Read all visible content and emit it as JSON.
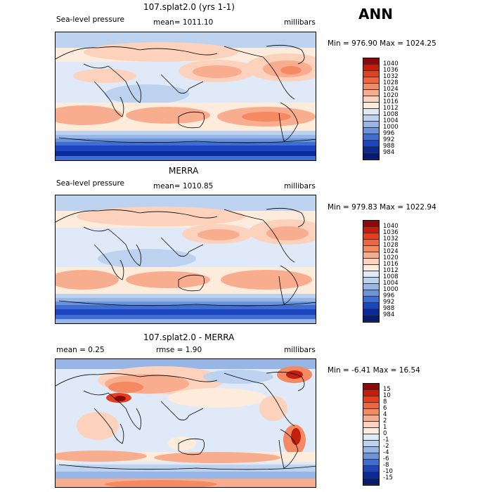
{
  "season": "ANN",
  "panels": [
    {
      "title": "107.splat2.0 (yrs 1-1)",
      "left_label": "Sea-level pressure",
      "center_label": "mean= 1011.10",
      "right_label": "millibars",
      "minmax": "Min = 976.90 Max = 1024.25",
      "colorbar": [
        "1040",
        "1036",
        "1032",
        "1028",
        "1024",
        "1020",
        "1016",
        "1012",
        "1008",
        "1004",
        "1000",
        "996",
        "992",
        "988",
        "984"
      ],
      "colors": [
        "#8e0a0a",
        "#c41e0c",
        "#e2401f",
        "#f0643e",
        "#f58a62",
        "#f9ad8f",
        "#fcd2bd",
        "#fdebdc",
        "#dfe9f7",
        "#bcd2ef",
        "#97b6e6",
        "#6b93dc",
        "#3f6dd2",
        "#1b46c0",
        "#0a2a9c",
        "#061b75"
      ]
    },
    {
      "title": "MERRA",
      "left_label": "Sea-level pressure",
      "center_label": "mean= 1010.85",
      "right_label": "millibars",
      "minmax": "Min = 979.83 Max = 1022.94",
      "colorbar": [
        "1040",
        "1036",
        "1032",
        "1028",
        "1024",
        "1020",
        "1016",
        "1012",
        "1008",
        "1004",
        "1000",
        "996",
        "992",
        "988",
        "984"
      ],
      "colors": [
        "#8e0a0a",
        "#c41e0c",
        "#e2401f",
        "#f0643e",
        "#f58a62",
        "#f9ad8f",
        "#fcd2bd",
        "#fdebdc",
        "#dfe9f7",
        "#bcd2ef",
        "#97b6e6",
        "#6b93dc",
        "#3f6dd2",
        "#1b46c0",
        "#0a2a9c",
        "#061b75"
      ]
    },
    {
      "title": "107.splat2.0 - MERRA",
      "left_label": "mean = 0.25",
      "center_label": "rmse = 1.90",
      "right_label": "millibars",
      "minmax": "Min = -6.41 Max = 16.54",
      "colorbar": [
        "15",
        "10",
        "8",
        "6",
        "4",
        "2",
        "1",
        "0",
        "-1",
        "-2",
        "-4",
        "-6",
        "-8",
        "-10",
        "-15"
      ],
      "colors": [
        "#8e0a0a",
        "#c41e0c",
        "#e2401f",
        "#f0643e",
        "#f58a62",
        "#f9ad8f",
        "#fcd2bd",
        "#fdebdc",
        "#dfe9f7",
        "#bcd2ef",
        "#97b6e6",
        "#6b93dc",
        "#3f6dd2",
        "#1b46c0",
        "#0a2a9c",
        "#061b75"
      ]
    }
  ]
}
